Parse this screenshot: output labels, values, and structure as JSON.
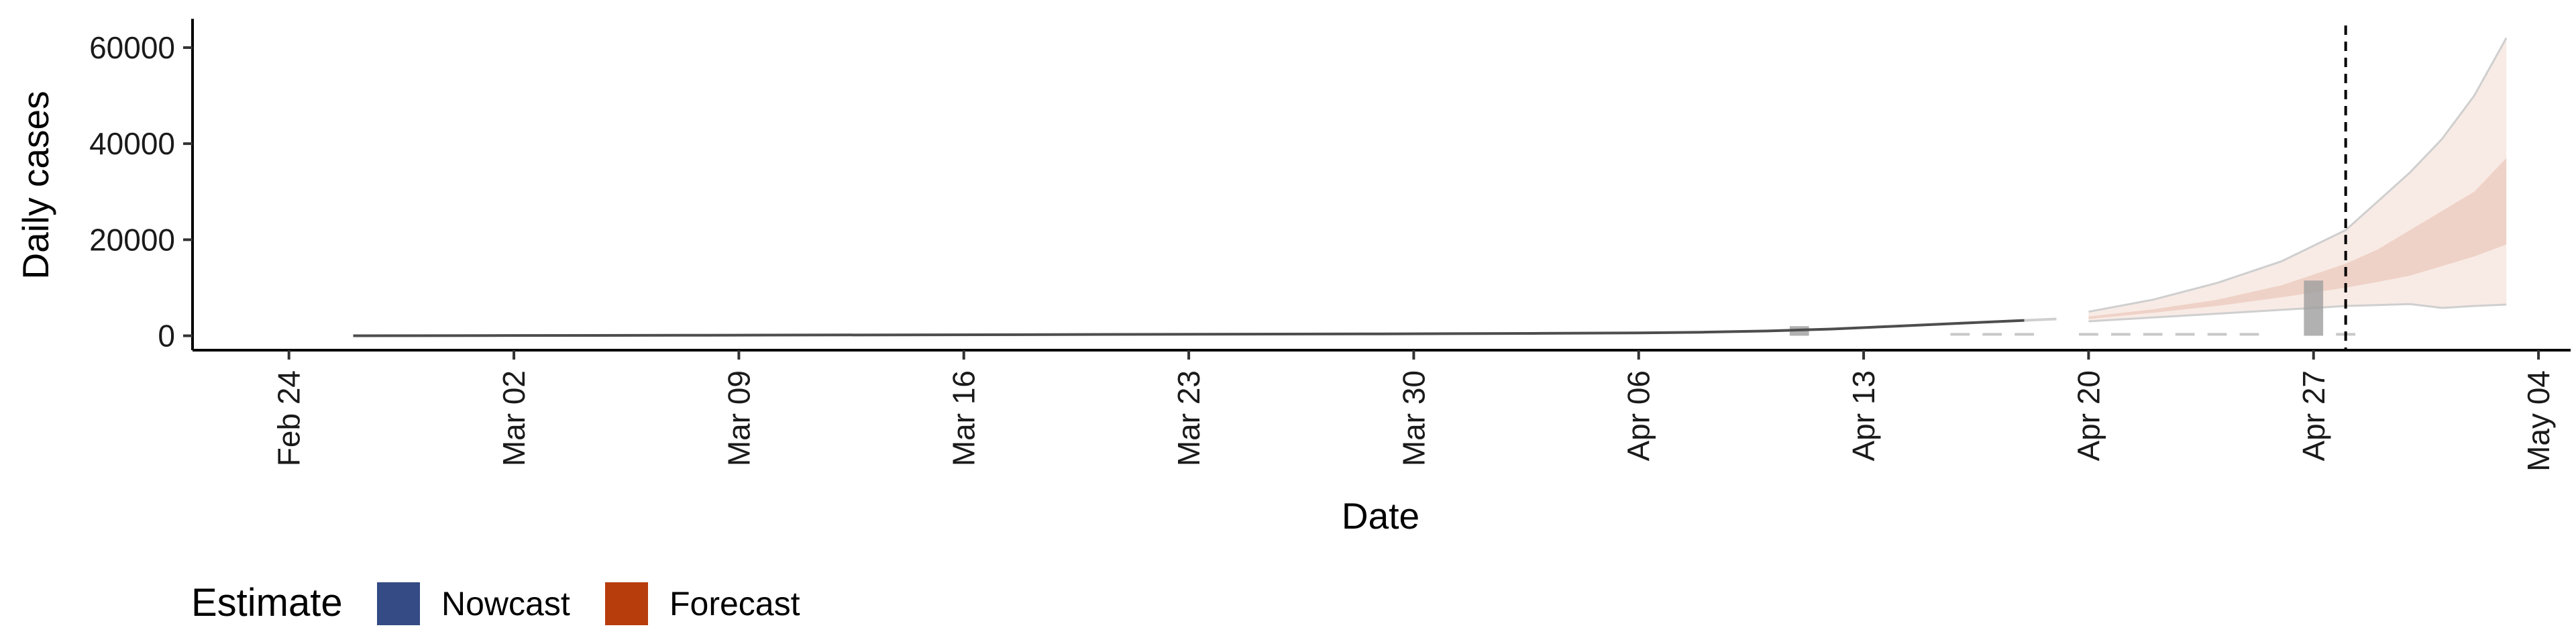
{
  "chart_data": {
    "type": "area",
    "title": "",
    "xlabel": "Date",
    "ylabel": "Daily cases",
    "x_axis_type": "date",
    "xlim": [
      "2020-02-21",
      "2020-05-05"
    ],
    "ylim": [
      -3000,
      66000
    ],
    "x_ticks": [
      "2020-02-24",
      "2020-03-02",
      "2020-03-09",
      "2020-03-16",
      "2020-03-23",
      "2020-03-30",
      "2020-04-06",
      "2020-04-13",
      "2020-04-20",
      "2020-04-27",
      "2020-05-04"
    ],
    "x_tick_labels": [
      "Feb 24",
      "Mar 02",
      "Mar 09",
      "Mar 16",
      "Mar 23",
      "Mar 30",
      "Apr 06",
      "Apr 13",
      "Apr 20",
      "Apr 27",
      "May 04"
    ],
    "y_ticks": [
      0,
      20000,
      40000,
      60000
    ],
    "y_tick_labels": [
      "0",
      "20000",
      "40000",
      "60000"
    ],
    "grid": false,
    "forecast_start_line": "2020-04-28",
    "legend": {
      "title": "Estimate",
      "position": "bottom-left",
      "items": [
        {
          "label": "Nowcast",
          "color": "#344b85"
        },
        {
          "label": "Forecast",
          "color": "#b73d0c"
        }
      ]
    },
    "observed_line": {
      "color": "#4d4d4d",
      "x": [
        "2020-02-26",
        "2020-03-01",
        "2020-03-08",
        "2020-03-15",
        "2020-03-22",
        "2020-03-29",
        "2020-04-03",
        "2020-04-06",
        "2020-04-08",
        "2020-04-10",
        "2020-04-12",
        "2020-04-14",
        "2020-04-16",
        "2020-04-18"
      ],
      "y": [
        0,
        50,
        120,
        200,
        300,
        400,
        500,
        600,
        750,
        1000,
        1400,
        2000,
        2600,
        3200
      ]
    },
    "observed_bars": [
      {
        "x": "2020-04-11",
        "value": 2000
      },
      {
        "x": "2020-04-27",
        "value": 11500
      }
    ],
    "nowcast_tail": {
      "x": [
        "2020-04-18",
        "2020-04-19"
      ],
      "y": [
        3200,
        3500
      ]
    },
    "forecast_series": {
      "x": [
        "2020-04-20",
        "2020-04-22",
        "2020-04-24",
        "2020-04-26",
        "2020-04-28",
        "2020-04-29",
        "2020-04-30",
        "2020-05-01",
        "2020-05-02",
        "2020-05-03"
      ],
      "lower_90": [
        3000,
        3800,
        4600,
        5400,
        6200,
        6400,
        6600,
        5800,
        6200,
        6500
      ],
      "lower_50": [
        3500,
        4800,
        6200,
        8000,
        10000,
        11200,
        12500,
        14500,
        16500,
        19000
      ],
      "upper_50": [
        4000,
        5500,
        7500,
        10500,
        15000,
        18000,
        22000,
        26000,
        30000,
        37000
      ],
      "upper_90": [
        5000,
        7500,
        11000,
        15500,
        22000,
        28000,
        34000,
        41000,
        50000,
        62000
      ]
    }
  }
}
